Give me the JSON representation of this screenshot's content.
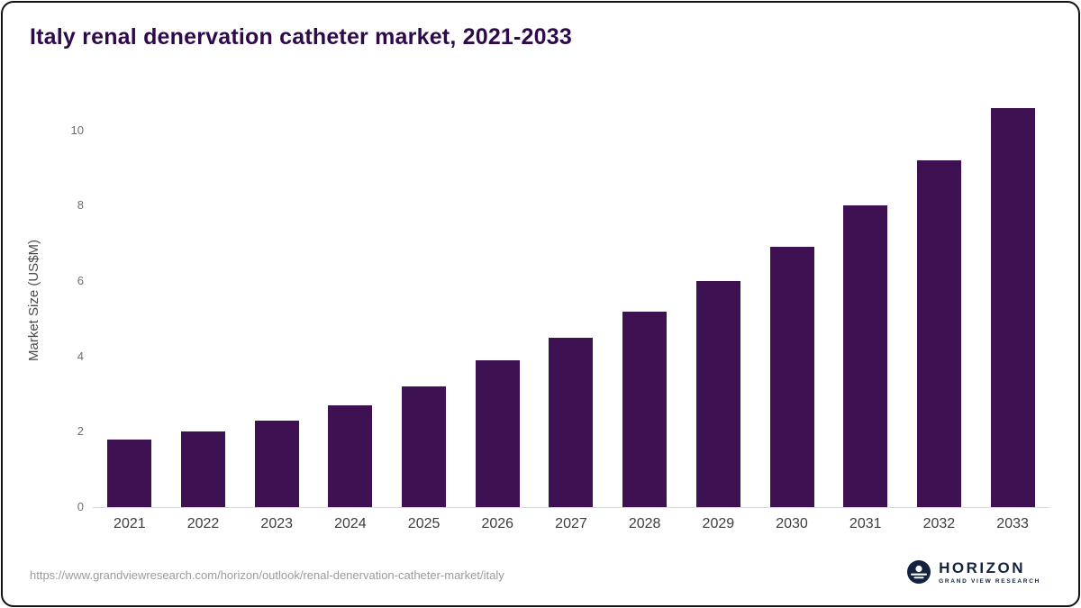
{
  "header": {
    "title": "Italy renal denervation catheter market, 2021-2033"
  },
  "chart_data": {
    "type": "bar",
    "title": "Italy renal denervation catheter market, 2021-2033",
    "categories": [
      "2021",
      "2022",
      "2023",
      "2024",
      "2025",
      "2026",
      "2027",
      "2028",
      "2029",
      "2030",
      "2031",
      "2032",
      "2033"
    ],
    "values": [
      1.8,
      2.0,
      2.3,
      2.7,
      3.2,
      3.9,
      4.5,
      5.2,
      6.0,
      6.9,
      8.0,
      9.2,
      10.6
    ],
    "xlabel": "",
    "ylabel": "Market Size (US$M)",
    "ylim": [
      0,
      11
    ],
    "yticks": [
      0,
      2,
      4,
      6,
      8,
      10
    ],
    "bar_color": "#3e1153",
    "grid": false,
    "legend": false
  },
  "footer": {
    "source_url": "https://www.grandviewresearch.com/horizon/outlook/renal-denervation-catheter-market/italy",
    "logo": {
      "name": "HORIZON",
      "subtitle": "GRAND VIEW RESEARCH",
      "icon": "horizon-globe-icon",
      "brand_color": "#13233f"
    }
  }
}
